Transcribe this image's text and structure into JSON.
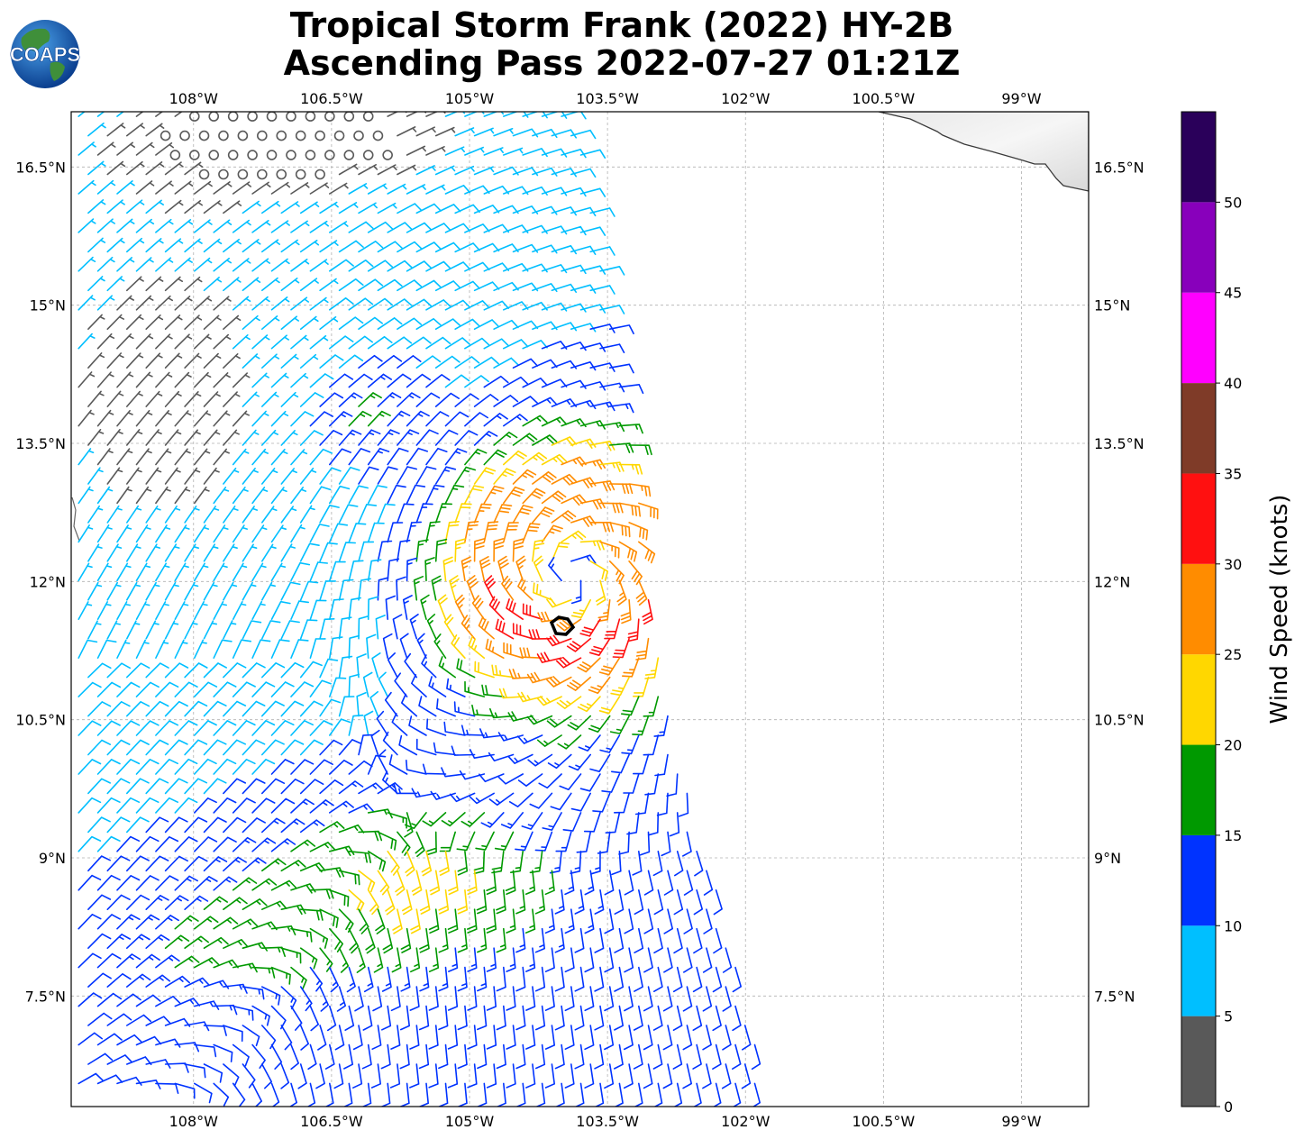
{
  "title": {
    "line1": "Tropical Storm Frank (2022) HY-2B",
    "line2": "Ascending Pass 2022-07-27 01:21Z"
  },
  "logo": {
    "text": "COAPS"
  },
  "map": {
    "lon_range": [
      -109.33,
      -98.27
    ],
    "lat_range": [
      6.3,
      17.1
    ],
    "lon_ticks": [
      {
        "value": -108.0,
        "label": "108°W"
      },
      {
        "value": -106.5,
        "label": "106.5°W"
      },
      {
        "value": -105.0,
        "label": "105°W"
      },
      {
        "value": -103.5,
        "label": "103.5°W"
      },
      {
        "value": -102.0,
        "label": "102°W"
      },
      {
        "value": -100.5,
        "label": "100.5°W"
      },
      {
        "value": -99.0,
        "label": "99°W"
      }
    ],
    "lat_ticks": [
      {
        "value": 16.5,
        "label": "16.5°N"
      },
      {
        "value": 15.0,
        "label": "15°N"
      },
      {
        "value": 13.5,
        "label": "13.5°N"
      },
      {
        "value": 12.0,
        "label": "12°N"
      },
      {
        "value": 10.5,
        "label": "10.5°N"
      },
      {
        "value": 9.0,
        "label": "9°N"
      },
      {
        "value": 7.5,
        "label": "7.5°N"
      }
    ],
    "grid": true,
    "storm_center": {
      "lon": -103.7,
      "lat": 11.5
    },
    "wind_center": {
      "lon": -103.9,
      "lat": 12.05
    },
    "swath_east_edge": [
      {
        "lat": 17.1,
        "lon": -103.8
      },
      {
        "lat": 12.5,
        "lon": -103.1
      },
      {
        "lat": 10.5,
        "lon": -102.8
      },
      {
        "lat": 6.3,
        "lon": -101.7
      }
    ]
  },
  "colorbar": {
    "label": "Wind Speed (knots)",
    "levels": [
      {
        "min": 0,
        "max": 5,
        "color": "#595959"
      },
      {
        "min": 5,
        "max": 10,
        "color": "#00bfff"
      },
      {
        "min": 10,
        "max": 15,
        "color": "#0033ff"
      },
      {
        "min": 15,
        "max": 20,
        "color": "#009900"
      },
      {
        "min": 20,
        "max": 25,
        "color": "#ffd700"
      },
      {
        "min": 25,
        "max": 30,
        "color": "#ff8c00"
      },
      {
        "min": 30,
        "max": 35,
        "color": "#ff1010"
      },
      {
        "min": 35,
        "max": 40,
        "color": "#7f3b28"
      },
      {
        "min": 40,
        "max": 45,
        "color": "#ff00ff"
      },
      {
        "min": 45,
        "max": 50,
        "color": "#8800bb"
      },
      {
        "min": 50,
        "max": 55,
        "color": "#2a005a"
      }
    ],
    "ticks": [
      0,
      5,
      10,
      15,
      20,
      25,
      30,
      35,
      40,
      45,
      50
    ]
  },
  "chart_data": {
    "type": "wind_barbs",
    "units": "knots",
    "max_wind_approx": 35,
    "regions": [
      {
        "name": "calm northwest corner",
        "lon_range": [
          -108.5,
          -104.5
        ],
        "lat_range": [
          16.3,
          17.1
        ],
        "speed_kt": "0-5"
      },
      {
        "name": "light northwest",
        "lon_range": [
          -109.3,
          -106.5
        ],
        "lat_range": [
          10.8,
          16.5
        ],
        "speed_kt": "5-10"
      },
      {
        "name": "core ring",
        "lon_range": [
          -105.0,
          -102.8
        ],
        "lat_range": [
          10.6,
          13.5
        ],
        "speed_kt": "20-30"
      },
      {
        "name": "maximum wind band",
        "lon_range": [
          -104.5,
          -103.5
        ],
        "lat_range": [
          11.3,
          11.7
        ],
        "speed_kt": "30-35"
      },
      {
        "name": "southern band",
        "lon_range": [
          -108.5,
          -104.5
        ],
        "lat_range": [
          7.0,
          9.8
        ],
        "speed_kt": "15-30"
      }
    ]
  }
}
